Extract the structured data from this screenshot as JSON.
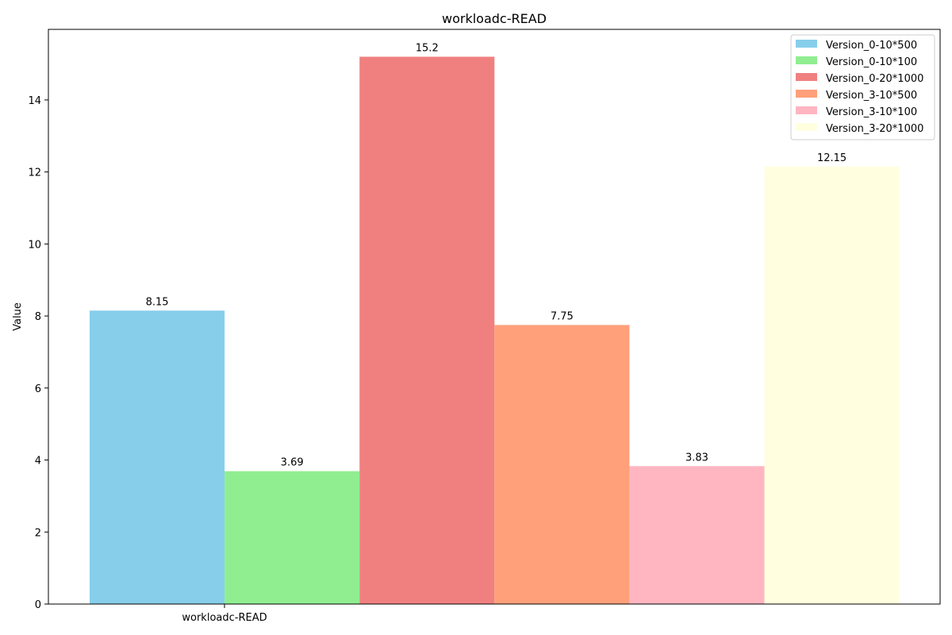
{
  "chart_data": {
    "type": "bar",
    "title": "workloadc-READ",
    "xlabel": "",
    "ylabel": "Value",
    "categories": [
      "workloadc-READ"
    ],
    "ylim": [
      0,
      15.96
    ],
    "yticks": [
      0,
      2,
      4,
      6,
      8,
      10,
      12,
      14
    ],
    "grid": false,
    "legend_position": "top-right",
    "series": [
      {
        "name": "Version_0-10*500",
        "values": [
          8.15
        ],
        "label": "8.15",
        "color": "#87CEEB"
      },
      {
        "name": "Version_0-10*100",
        "values": [
          3.69
        ],
        "label": "3.69",
        "color": "#90EE90"
      },
      {
        "name": "Version_0-20*1000",
        "values": [
          15.2
        ],
        "label": "15.2",
        "color": "#F08080"
      },
      {
        "name": "Version_3-10*500",
        "values": [
          7.75
        ],
        "label": "7.75",
        "color": "#FFA07A"
      },
      {
        "name": "Version_3-10*100",
        "values": [
          3.83
        ],
        "label": "3.83",
        "color": "#FFB6C1"
      },
      {
        "name": "Version_3-20*1000",
        "values": [
          12.15
        ],
        "label": "12.15",
        "color": "#FFFFE0"
      }
    ]
  }
}
